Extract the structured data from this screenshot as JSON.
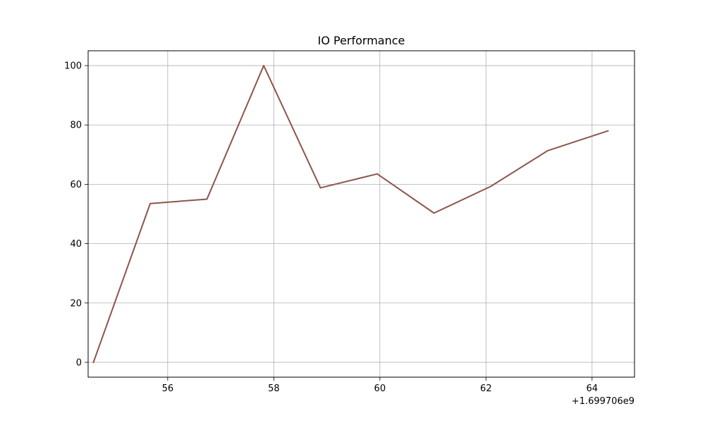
{
  "chart_data": {
    "type": "line",
    "title": "IO Performance",
    "xlabel": "",
    "ylabel": "",
    "x_offset_label": "+1.699706e9",
    "x_offset": 1699706000,
    "xlim": [
      54.5,
      64.8
    ],
    "ylim": [
      -5,
      105
    ],
    "x_ticks": [
      56,
      58,
      60,
      62,
      64
    ],
    "x_tick_labels": [
      "56",
      "58",
      "60",
      "62",
      "64"
    ],
    "y_ticks": [
      0,
      20,
      40,
      60,
      80,
      100
    ],
    "y_tick_labels": [
      "0",
      "20",
      "40",
      "60",
      "80",
      "100"
    ],
    "grid": true,
    "series": [
      {
        "color": "#8c564b",
        "x": [
          54.6,
          55.67,
          56.74,
          57.81,
          58.88,
          59.95,
          61.02,
          62.09,
          63.16,
          64.3
        ],
        "y": [
          0,
          53.5,
          55.0,
          100,
          58.8,
          63.5,
          50.3,
          59.3,
          71.3,
          78.0
        ]
      }
    ]
  }
}
